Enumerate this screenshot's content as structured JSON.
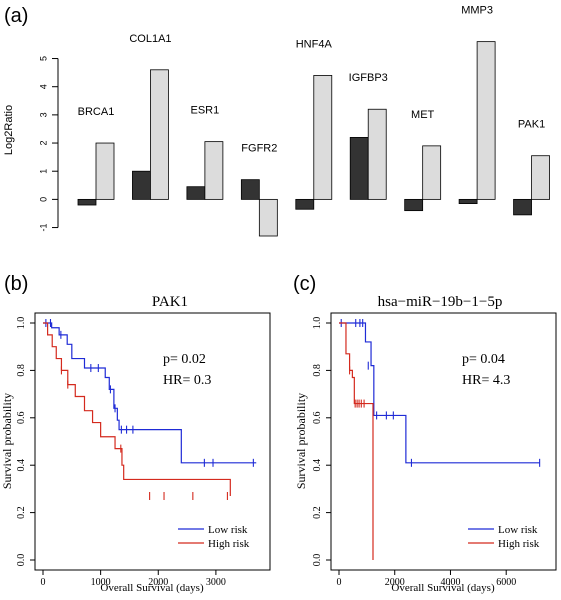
{
  "colors": {
    "bar_tumor": "#333333",
    "bar_normal": "#dcdcdc",
    "low_risk": "#1f2bd6",
    "high_risk": "#d42a1e",
    "axis": "#000000"
  },
  "chart_data": [
    {
      "panel_label": "(a)",
      "type": "bar",
      "ylabel": "Log2Ratio",
      "ylim": [
        -1.3,
        5.8
      ],
      "yticks": [
        -1,
        0,
        1,
        2,
        3,
        4,
        5
      ],
      "categories": [
        "BRCA1",
        "COL1A1",
        "ESR1",
        "FGFR2",
        "HNF4A",
        "IGFBP3",
        "MET",
        "MMP3",
        "PAK1"
      ],
      "series": [
        {
          "color_key": "bar_tumor",
          "values": [
            -0.2,
            1.0,
            0.45,
            0.7,
            -0.35,
            2.2,
            -0.4,
            -0.15,
            -0.55
          ]
        },
        {
          "color_key": "bar_normal",
          "values": [
            2.0,
            4.6,
            2.05,
            -1.3,
            4.4,
            3.2,
            1.9,
            5.6,
            1.55
          ]
        }
      ],
      "grid": false,
      "legend": "none"
    },
    {
      "panel_label": "(b)",
      "type": "line",
      "step": true,
      "title": "PAK1",
      "xlabel": "Overall Survival (days)",
      "ylabel": "Survival probability",
      "xlim": [
        0,
        3800
      ],
      "ylim": [
        0,
        1.0
      ],
      "xticks": [
        0,
        1000,
        2000,
        3000
      ],
      "yticks": [
        0.0,
        0.2,
        0.4,
        0.6,
        0.8,
        1.0
      ],
      "annotation": [
        "p= 0.02",
        "HR= 0.3"
      ],
      "legend": "bottom-right",
      "series": [
        {
          "name": "Low risk",
          "color_key": "low_risk",
          "x": [
            0,
            150,
            280,
            420,
            500,
            720,
            1080,
            1150,
            1230,
            1290,
            1320,
            2400,
            3700
          ],
          "y": [
            1.0,
            0.98,
            0.95,
            0.91,
            0.85,
            0.81,
            0.77,
            0.72,
            0.64,
            0.59,
            0.55,
            0.41,
            0.41
          ],
          "censored_x": [
            50,
            130,
            310,
            830,
            960,
            1170,
            1250,
            1360,
            1450,
            1560,
            2800,
            2950,
            3650
          ],
          "censored_y": [
            1.0,
            1.0,
            0.95,
            0.81,
            0.81,
            0.72,
            0.64,
            0.55,
            0.55,
            0.55,
            0.41,
            0.41,
            0.41
          ]
        },
        {
          "name": "High risk",
          "color_key": "high_risk",
          "x": [
            0,
            80,
            160,
            230,
            320,
            430,
            560,
            720,
            860,
            1000,
            1250,
            1370,
            1400,
            3250
          ],
          "y": [
            1.0,
            0.95,
            0.9,
            0.85,
            0.8,
            0.74,
            0.69,
            0.63,
            0.58,
            0.52,
            0.47,
            0.4,
            0.34,
            0.27
          ],
          "censored_x": [
            320,
            430,
            1350,
            1850,
            2100,
            2600,
            3200
          ],
          "censored_y": [
            0.8,
            0.74,
            0.47,
            0.27,
            0.27,
            0.27,
            0.27
          ]
        }
      ]
    },
    {
      "panel_label": "(c)",
      "type": "line",
      "step": true,
      "title": "hsa−miR−19b−1−5p",
      "xlabel": "Overall Survival (days)",
      "ylabel": "Survival probability",
      "xlim": [
        0,
        7500
      ],
      "ylim": [
        0,
        1.0
      ],
      "xticks": [
        0,
        2000,
        4000,
        6000
      ],
      "yticks": [
        0.0,
        0.2,
        0.4,
        0.6,
        0.8,
        1.0
      ],
      "annotation": [
        "p= 0.04",
        "HR= 4.3"
      ],
      "legend": "bottom-right",
      "series": [
        {
          "name": "Low risk",
          "color_key": "low_risk",
          "x": [
            0,
            950,
            1150,
            1250,
            2400,
            7200
          ],
          "y": [
            1.0,
            0.92,
            0.82,
            0.61,
            0.41,
            0.41
          ],
          "censored_x": [
            80,
            600,
            750,
            850,
            1050,
            1350,
            1700,
            1950,
            2600,
            7200
          ],
          "censored_y": [
            1.0,
            1.0,
            1.0,
            1.0,
            0.82,
            0.61,
            0.61,
            0.61,
            0.41,
            0.41
          ],
          "censor_tick_ratio": 1
        },
        {
          "name": "High risk",
          "color_key": "high_risk",
          "x": [
            0,
            250,
            380,
            480,
            550,
            1220,
            1220
          ],
          "y": [
            1.0,
            0.87,
            0.8,
            0.77,
            0.66,
            0.66,
            0.0
          ],
          "censored_x": [
            380,
            580,
            650,
            720,
            800,
            900
          ],
          "censored_y": [
            0.8,
            0.66,
            0.66,
            0.66,
            0.66,
            0.66
          ]
        }
      ]
    }
  ]
}
